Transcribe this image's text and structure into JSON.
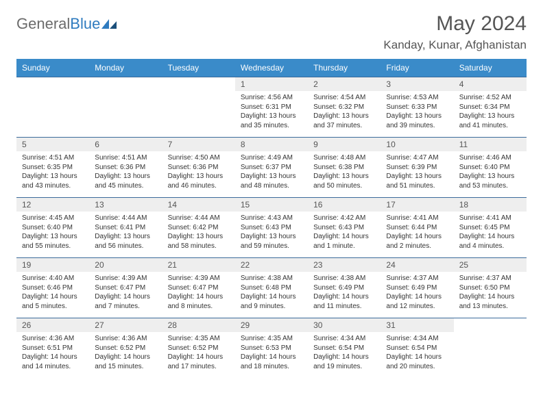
{
  "brand": {
    "part1": "General",
    "part2": "Blue"
  },
  "title": "May 2024",
  "location": "Kanday, Kunar, Afghanistan",
  "colors": {
    "header_bg": "#3a8bc9",
    "header_text": "#ffffff",
    "daynum_bg": "#eeeeee",
    "border": "#3a6a9a",
    "brand_gray": "#6b6b6b",
    "brand_blue": "#2f7bbf"
  },
  "days_of_week": [
    "Sunday",
    "Monday",
    "Tuesday",
    "Wednesday",
    "Thursday",
    "Friday",
    "Saturday"
  ],
  "weeks": [
    [
      {
        "n": "",
        "sr": "",
        "ss": "",
        "dl": ""
      },
      {
        "n": "",
        "sr": "",
        "ss": "",
        "dl": ""
      },
      {
        "n": "",
        "sr": "",
        "ss": "",
        "dl": ""
      },
      {
        "n": "1",
        "sr": "Sunrise: 4:56 AM",
        "ss": "Sunset: 6:31 PM",
        "dl": "Daylight: 13 hours and 35 minutes."
      },
      {
        "n": "2",
        "sr": "Sunrise: 4:54 AM",
        "ss": "Sunset: 6:32 PM",
        "dl": "Daylight: 13 hours and 37 minutes."
      },
      {
        "n": "3",
        "sr": "Sunrise: 4:53 AM",
        "ss": "Sunset: 6:33 PM",
        "dl": "Daylight: 13 hours and 39 minutes."
      },
      {
        "n": "4",
        "sr": "Sunrise: 4:52 AM",
        "ss": "Sunset: 6:34 PM",
        "dl": "Daylight: 13 hours and 41 minutes."
      }
    ],
    [
      {
        "n": "5",
        "sr": "Sunrise: 4:51 AM",
        "ss": "Sunset: 6:35 PM",
        "dl": "Daylight: 13 hours and 43 minutes."
      },
      {
        "n": "6",
        "sr": "Sunrise: 4:51 AM",
        "ss": "Sunset: 6:36 PM",
        "dl": "Daylight: 13 hours and 45 minutes."
      },
      {
        "n": "7",
        "sr": "Sunrise: 4:50 AM",
        "ss": "Sunset: 6:36 PM",
        "dl": "Daylight: 13 hours and 46 minutes."
      },
      {
        "n": "8",
        "sr": "Sunrise: 4:49 AM",
        "ss": "Sunset: 6:37 PM",
        "dl": "Daylight: 13 hours and 48 minutes."
      },
      {
        "n": "9",
        "sr": "Sunrise: 4:48 AM",
        "ss": "Sunset: 6:38 PM",
        "dl": "Daylight: 13 hours and 50 minutes."
      },
      {
        "n": "10",
        "sr": "Sunrise: 4:47 AM",
        "ss": "Sunset: 6:39 PM",
        "dl": "Daylight: 13 hours and 51 minutes."
      },
      {
        "n": "11",
        "sr": "Sunrise: 4:46 AM",
        "ss": "Sunset: 6:40 PM",
        "dl": "Daylight: 13 hours and 53 minutes."
      }
    ],
    [
      {
        "n": "12",
        "sr": "Sunrise: 4:45 AM",
        "ss": "Sunset: 6:40 PM",
        "dl": "Daylight: 13 hours and 55 minutes."
      },
      {
        "n": "13",
        "sr": "Sunrise: 4:44 AM",
        "ss": "Sunset: 6:41 PM",
        "dl": "Daylight: 13 hours and 56 minutes."
      },
      {
        "n": "14",
        "sr": "Sunrise: 4:44 AM",
        "ss": "Sunset: 6:42 PM",
        "dl": "Daylight: 13 hours and 58 minutes."
      },
      {
        "n": "15",
        "sr": "Sunrise: 4:43 AM",
        "ss": "Sunset: 6:43 PM",
        "dl": "Daylight: 13 hours and 59 minutes."
      },
      {
        "n": "16",
        "sr": "Sunrise: 4:42 AM",
        "ss": "Sunset: 6:43 PM",
        "dl": "Daylight: 14 hours and 1 minute."
      },
      {
        "n": "17",
        "sr": "Sunrise: 4:41 AM",
        "ss": "Sunset: 6:44 PM",
        "dl": "Daylight: 14 hours and 2 minutes."
      },
      {
        "n": "18",
        "sr": "Sunrise: 4:41 AM",
        "ss": "Sunset: 6:45 PM",
        "dl": "Daylight: 14 hours and 4 minutes."
      }
    ],
    [
      {
        "n": "19",
        "sr": "Sunrise: 4:40 AM",
        "ss": "Sunset: 6:46 PM",
        "dl": "Daylight: 14 hours and 5 minutes."
      },
      {
        "n": "20",
        "sr": "Sunrise: 4:39 AM",
        "ss": "Sunset: 6:47 PM",
        "dl": "Daylight: 14 hours and 7 minutes."
      },
      {
        "n": "21",
        "sr": "Sunrise: 4:39 AM",
        "ss": "Sunset: 6:47 PM",
        "dl": "Daylight: 14 hours and 8 minutes."
      },
      {
        "n": "22",
        "sr": "Sunrise: 4:38 AM",
        "ss": "Sunset: 6:48 PM",
        "dl": "Daylight: 14 hours and 9 minutes."
      },
      {
        "n": "23",
        "sr": "Sunrise: 4:38 AM",
        "ss": "Sunset: 6:49 PM",
        "dl": "Daylight: 14 hours and 11 minutes."
      },
      {
        "n": "24",
        "sr": "Sunrise: 4:37 AM",
        "ss": "Sunset: 6:49 PM",
        "dl": "Daylight: 14 hours and 12 minutes."
      },
      {
        "n": "25",
        "sr": "Sunrise: 4:37 AM",
        "ss": "Sunset: 6:50 PM",
        "dl": "Daylight: 14 hours and 13 minutes."
      }
    ],
    [
      {
        "n": "26",
        "sr": "Sunrise: 4:36 AM",
        "ss": "Sunset: 6:51 PM",
        "dl": "Daylight: 14 hours and 14 minutes."
      },
      {
        "n": "27",
        "sr": "Sunrise: 4:36 AM",
        "ss": "Sunset: 6:52 PM",
        "dl": "Daylight: 14 hours and 15 minutes."
      },
      {
        "n": "28",
        "sr": "Sunrise: 4:35 AM",
        "ss": "Sunset: 6:52 PM",
        "dl": "Daylight: 14 hours and 17 minutes."
      },
      {
        "n": "29",
        "sr": "Sunrise: 4:35 AM",
        "ss": "Sunset: 6:53 PM",
        "dl": "Daylight: 14 hours and 18 minutes."
      },
      {
        "n": "30",
        "sr": "Sunrise: 4:34 AM",
        "ss": "Sunset: 6:54 PM",
        "dl": "Daylight: 14 hours and 19 minutes."
      },
      {
        "n": "31",
        "sr": "Sunrise: 4:34 AM",
        "ss": "Sunset: 6:54 PM",
        "dl": "Daylight: 14 hours and 20 minutes."
      },
      {
        "n": "",
        "sr": "",
        "ss": "",
        "dl": ""
      }
    ]
  ]
}
